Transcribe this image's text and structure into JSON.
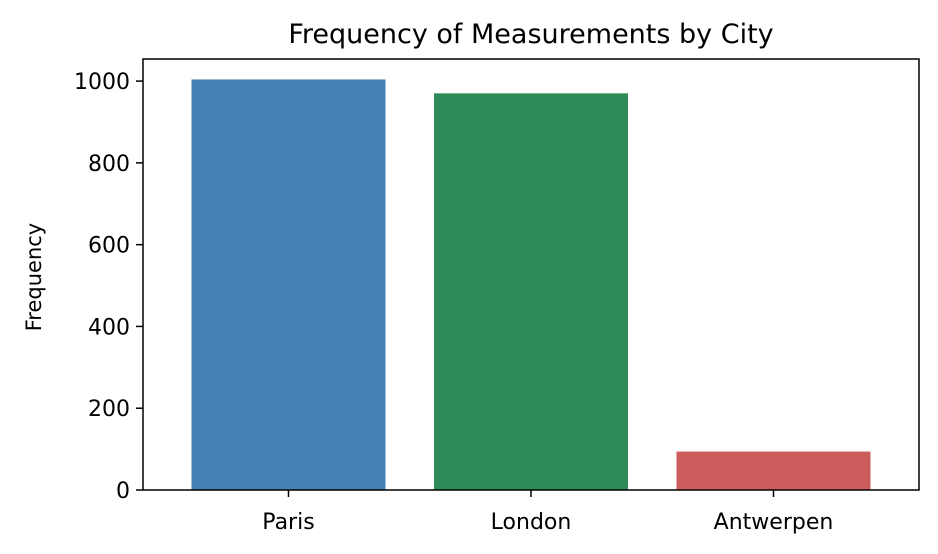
{
  "chart_data": {
    "type": "bar",
    "title": "Frequency of Measurements by City",
    "xlabel": "",
    "ylabel": "Frequency",
    "categories": [
      "Paris",
      "London",
      "Antwerpen"
    ],
    "values": [
      1004,
      970,
      94
    ],
    "colors": [
      "#4682b4",
      "#2e8b57",
      "#cd5c5c"
    ],
    "ylim": [
      0,
      1054
    ],
    "yticks": [
      0,
      200,
      400,
      600,
      800,
      1000
    ],
    "grid": false,
    "legend": "none"
  }
}
